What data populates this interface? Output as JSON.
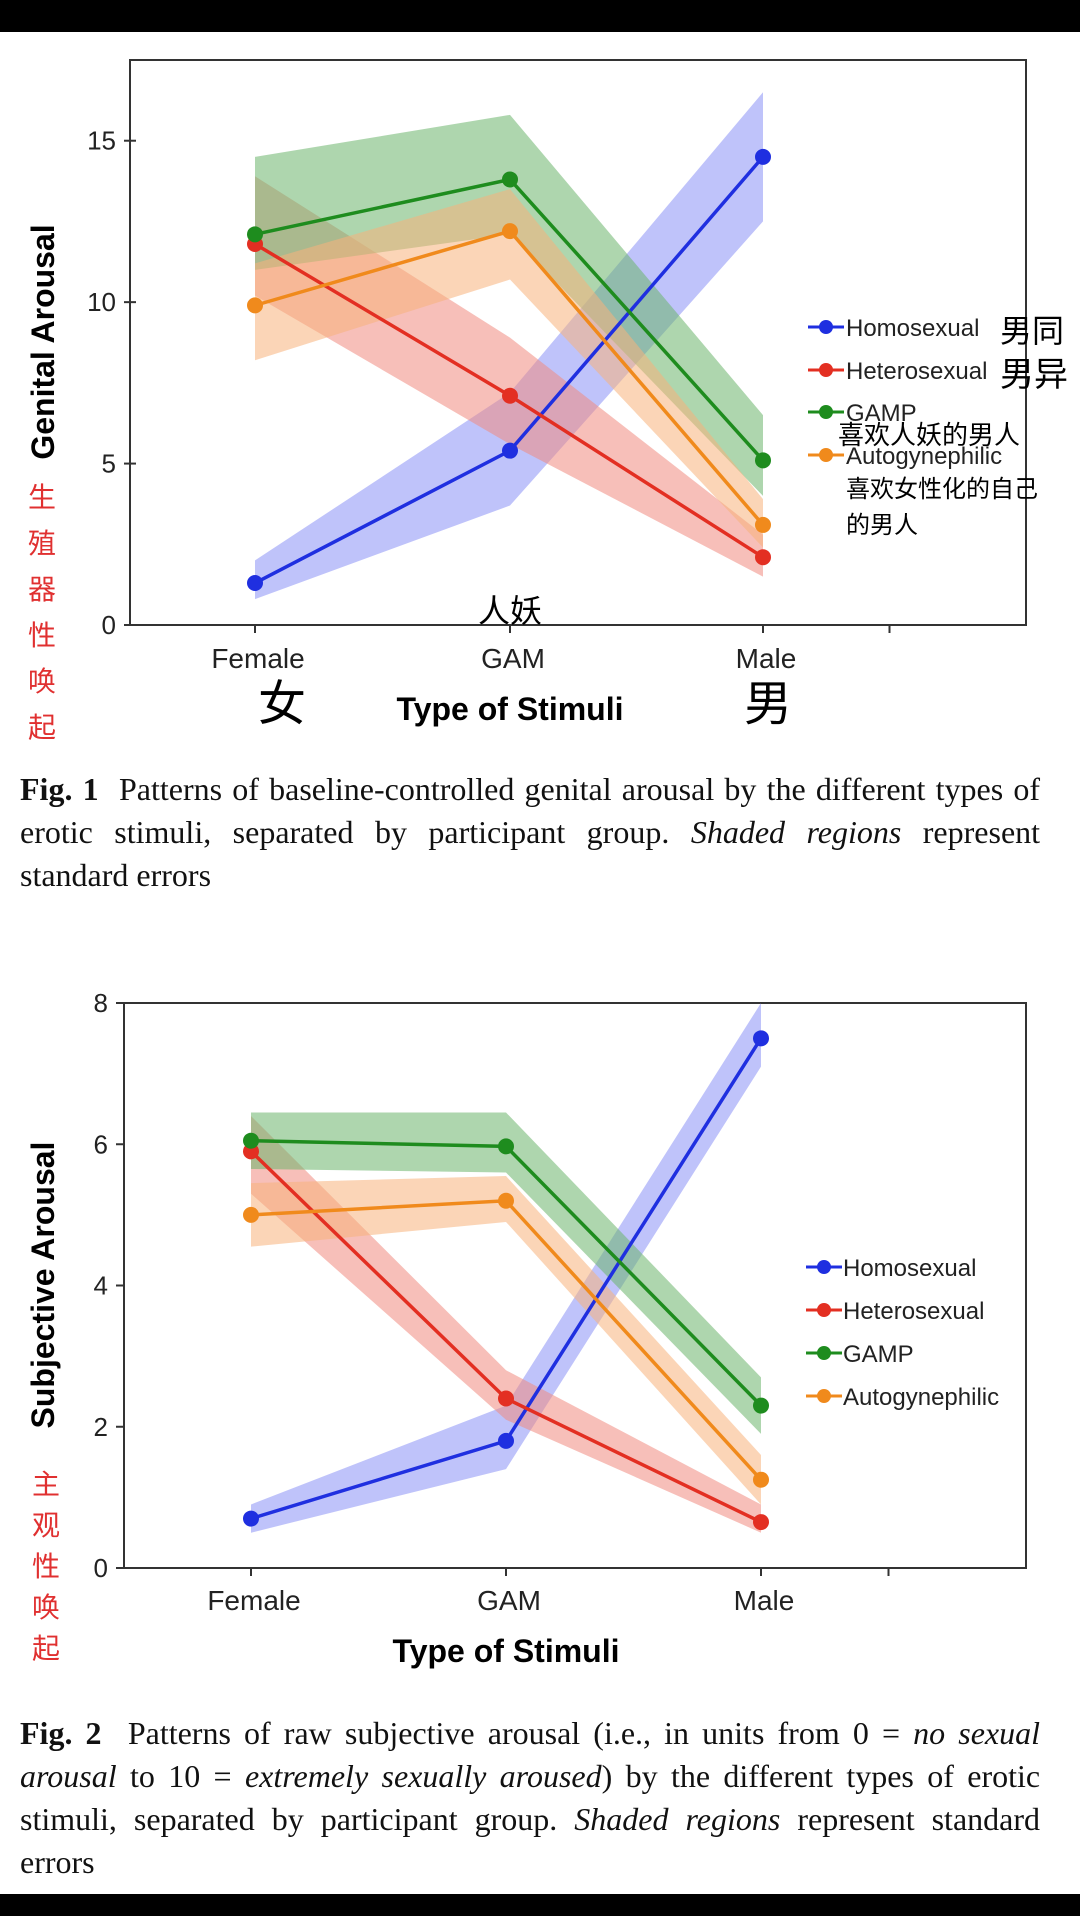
{
  "chart_data": [
    {
      "type": "line",
      "title": "",
      "xlabel": "Type of Stimuli",
      "ylabel": "Genital Arousal",
      "categories": [
        "Female",
        "GAM",
        "Male"
      ],
      "ylim": [
        0,
        17.5
      ],
      "yticks": [
        0,
        5,
        10,
        15
      ],
      "legend_position": "center-right",
      "error_band": "standard error",
      "series": [
        {
          "name": "Homosexual",
          "color": "#1f2fe0",
          "band": "#8a92f5",
          "values": [
            1.3,
            5.4,
            14.5
          ],
          "lower": [
            0.8,
            3.7,
            12.5
          ],
          "upper": [
            2.0,
            7.2,
            16.5
          ]
        },
        {
          "name": "Heterosexual",
          "color": "#e32f22",
          "band": "#f08a80",
          "values": [
            11.8,
            7.1,
            2.1
          ],
          "lower": [
            10.2,
            5.6,
            1.5
          ],
          "upper": [
            13.9,
            8.9,
            2.8
          ]
        },
        {
          "name": "GAMP",
          "color": "#1e8c1e",
          "band": "#6cb56c",
          "values": [
            12.1,
            13.8,
            5.1
          ],
          "lower": [
            11.0,
            12.1,
            4.0
          ],
          "upper": [
            14.5,
            15.8,
            6.5
          ]
        },
        {
          "name": "Autogynephilic",
          "color": "#f08a1c",
          "band": "#f7b27c",
          "values": [
            9.9,
            12.2,
            3.1
          ],
          "lower": [
            8.2,
            10.7,
            2.4
          ],
          "upper": [
            11.2,
            13.5,
            3.9
          ]
        }
      ]
    },
    {
      "type": "line",
      "title": "",
      "xlabel": "Type of Stimuli",
      "ylabel": "Subjective Arousal",
      "categories": [
        "Female",
        "GAM",
        "Male"
      ],
      "ylim": [
        0,
        8
      ],
      "yticks": [
        0,
        2,
        4,
        6,
        8
      ],
      "legend_position": "center-right",
      "error_band": "standard error",
      "series": [
        {
          "name": "Homosexual",
          "color": "#1f2fe0",
          "band": "#8a92f5",
          "values": [
            0.7,
            1.8,
            7.5
          ],
          "lower": [
            0.5,
            1.4,
            7.1
          ],
          "upper": [
            0.9,
            2.3,
            8.0
          ]
        },
        {
          "name": "Heterosexual",
          "color": "#e32f22",
          "band": "#f08a80",
          "values": [
            5.9,
            2.4,
            0.65
          ],
          "lower": [
            5.3,
            2.1,
            0.5
          ],
          "upper": [
            6.4,
            2.8,
            0.9
          ]
        },
        {
          "name": "GAMP",
          "color": "#1e8c1e",
          "band": "#6cb56c",
          "values": [
            6.05,
            5.97,
            2.3
          ],
          "lower": [
            5.65,
            5.6,
            1.9
          ],
          "upper": [
            6.45,
            6.45,
            2.7
          ]
        },
        {
          "name": "Autogynephilic",
          "color": "#f08a1c",
          "band": "#f7b27c",
          "values": [
            5.0,
            5.2,
            1.25
          ],
          "lower": [
            4.55,
            4.9,
            0.9
          ],
          "upper": [
            5.45,
            5.55,
            1.6
          ]
        }
      ]
    }
  ],
  "annotations": {
    "fig1": {
      "ylabel_cn": [
        "生",
        "殖",
        "器",
        "性",
        "唤",
        "起"
      ],
      "x_female_cn": "女",
      "x_male_cn": "男",
      "gam_cn": "人妖",
      "homosexual_cn": "男同",
      "heterosexual_cn": "男异",
      "gamp_cn": "喜欢人妖的男人",
      "autogynephilic_cn": [
        "喜欢女性化的自己",
        "的男人"
      ]
    },
    "fig2": {
      "ylabel_cn": [
        "主",
        "观",
        "性",
        "唤",
        "起"
      ]
    }
  },
  "captions": {
    "fig1": {
      "label": "Fig. 1",
      "line1": "Patterns of baseline-controlled genital arousal by the different",
      "line2": "types of erotic stimuli, separated by participant group.",
      "line2_italic": "Shaded regions",
      "line3": "represent standard errors"
    },
    "fig2": {
      "label": "Fig. 2",
      "line1a": "Patterns of raw subjective arousal (i.e., in units from 0 =",
      "line1_italic": "no",
      "line2_italic_a": "sexual arousal",
      "line2_mid": "to 10 =",
      "line2_italic_b": "extremely sexually aroused",
      "line2_end": ") by the different types",
      "line3": "of erotic stimuli, separated by participant group.",
      "line3_italic": "Shaded regions",
      "line4": "represent standard errors"
    }
  }
}
